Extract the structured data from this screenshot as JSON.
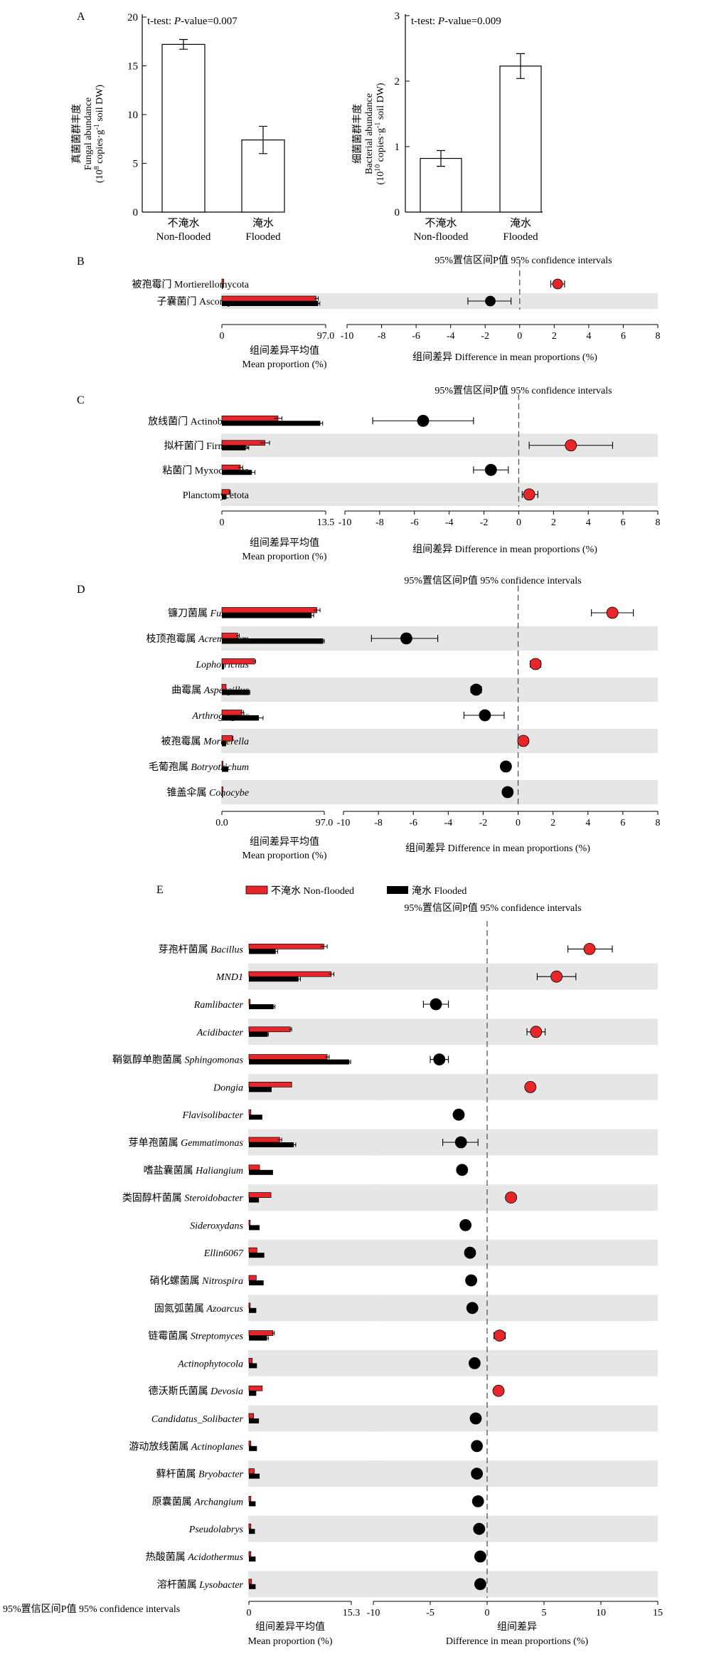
{
  "colors": {
    "non_flooded": "#e8262a",
    "flooded": "#000000",
    "stripe": "#e6e6e6"
  },
  "panelA": {
    "fungal": {
      "letter": "A",
      "test_prefix": "t-test: ",
      "test_p": "P",
      "test_suffix": "-value=0.007",
      "ylabel_zh": "真菌菌群丰度",
      "ylabel_en": "Fungal abundance",
      "ylabel_unit_1": "(10",
      "ylabel_unit_sup": "8",
      "ylabel_unit_2": " copies·g",
      "ylabel_unit_sup2": "-1",
      "ylabel_unit_3": " soil DW)",
      "yticks": [
        "0",
        "5",
        "10",
        "15",
        "20"
      ],
      "categories_zh": [
        "不淹水",
        "淹水"
      ],
      "categories_en": [
        "Non-flooded",
        "Flooded"
      ]
    },
    "bacterial": {
      "test_prefix": "t-test: ",
      "test_p": "P",
      "test_suffix": "-value=0.009",
      "ylabel_zh": "细菌菌群丰度",
      "ylabel_en": "Bacterial abundance",
      "ylabel_unit_1": "(10",
      "ylabel_unit_sup": "10",
      "ylabel_unit_2": " copies·g",
      "ylabel_unit_sup2": "-1",
      "ylabel_unit_3": " soil DW)",
      "yticks": [
        "0",
        "1",
        "2",
        "3"
      ],
      "categories_zh": [
        "不淹水",
        "淹水"
      ],
      "categories_en": [
        "Non-flooded",
        "Flooded"
      ]
    }
  },
  "labels": {
    "ci_header": "95%置信区间P值 95% confidence intervals",
    "mean_zh": "组间差异平均值",
    "mean_en": "Mean proportion (%)",
    "diff_line": "组间差异 Difference in mean proportions (%)",
    "diff_zh": "组间差异",
    "diff_en": "Difference in mean proportions (%)",
    "legend_non_flooded": "不淹水 Non-flooded",
    "legend_flooded": "淹水 Flooded",
    "footer_note": "95%置信区间P值 95% confidence intervals",
    "letter_B": "B",
    "letter_C": "C",
    "letter_D": "D",
    "letter_E": "E"
  },
  "chart_data": [
    {
      "panel": "A-fungal",
      "type": "bar",
      "title": "t-test: P-value=0.007",
      "ylabel": "真菌菌群丰度 Fungal abundance (10^8 copies·g^-1 soil DW)",
      "categories": [
        "不淹水 Non-flooded",
        "淹水 Flooded"
      ],
      "values": [
        17.2,
        7.4
      ],
      "errors": [
        0.5,
        1.4
      ],
      "ylim": [
        0,
        20
      ]
    },
    {
      "panel": "A-bacterial",
      "type": "bar",
      "title": "t-test: P-value=0.009",
      "ylabel": "细菌菌群丰度 Bacterial abundance (10^10 copies·g^-1 soil DW)",
      "categories": [
        "不淹水 Non-flooded",
        "淹水 Flooded"
      ],
      "values": [
        0.82,
        2.23
      ],
      "errors": [
        0.12,
        0.19
      ],
      "ylim": [
        0,
        3
      ]
    },
    {
      "panel": "B",
      "type": "bar",
      "bar_xticks": [
        "0",
        "97.0"
      ],
      "bar_max": 97,
      "diff_xticks": [
        "-10",
        "-8",
        "-6",
        "-4",
        "-2",
        "0",
        "2",
        "4",
        "6",
        "8"
      ],
      "diff_xlim": [
        -10,
        8
      ],
      "rows": [
        {
          "zh": "被孢霉门 ",
          "en": "Mortierellomycota",
          "italic": false,
          "nf": 1.8,
          "nf_err": 0,
          "fl": 0.4,
          "fl_err": 0,
          "diff": 2.2,
          "lo": 1.8,
          "hi": 2.6,
          "higher": "non_flooded"
        },
        {
          "zh": "子囊菌门 ",
          "en": "Ascomycota",
          "italic": false,
          "nf": 88,
          "nf_err": 2,
          "fl": 90,
          "fl_err": 1.5,
          "diff": -1.7,
          "lo": -3.0,
          "hi": -0.5,
          "higher": "flooded"
        }
      ]
    },
    {
      "panel": "C",
      "type": "bar",
      "bar_xticks": [
        "0",
        "13.5"
      ],
      "bar_max": 13.5,
      "diff_xticks": [
        "-10",
        "-8",
        "-6",
        "-4",
        "-2",
        "0",
        "2",
        "4",
        "6",
        "8"
      ],
      "diff_xlim": [
        -10,
        8
      ],
      "rows": [
        {
          "zh": "放线菌门 ",
          "en": "Actinobacteria",
          "italic": false,
          "nf": 7.3,
          "nf_err": 0.5,
          "fl": 12.8,
          "fl_err": 0.3,
          "diff": -5.5,
          "lo": -8.4,
          "hi": -2.6,
          "higher": "flooded"
        },
        {
          "zh": "拟杆菌门 ",
          "en": "Firmicutes",
          "italic": false,
          "nf": 5.6,
          "nf_err": 0.6,
          "fl": 3.1,
          "fl_err": 0.4,
          "diff": 3.0,
          "lo": 0.6,
          "hi": 5.4,
          "higher": "non_flooded"
        },
        {
          "zh": "粘菌门 ",
          "en": "Myxococcota",
          "italic": false,
          "nf": 2.4,
          "nf_err": 0.3,
          "fl": 3.9,
          "fl_err": 0.4,
          "diff": -1.6,
          "lo": -2.6,
          "hi": -0.6,
          "higher": "flooded"
        },
        {
          "zh": "",
          "en": "Planctomycetota",
          "italic": false,
          "nf": 1.0,
          "nf_err": 0.1,
          "fl": 0.5,
          "fl_err": 0.05,
          "diff": 0.6,
          "lo": 0.2,
          "hi": 1.1,
          "higher": "non_flooded"
        }
      ]
    },
    {
      "panel": "D",
      "type": "bar",
      "bar_xticks": [
        "0.0",
        "97.0"
      ],
      "bar_max": 97,
      "diff_xticks": [
        "-10",
        "-8",
        "-6",
        "-4",
        "-2",
        "0",
        "2",
        "4",
        "6",
        "8"
      ],
      "diff_xlim": [
        -10,
        8
      ],
      "rows": [
        {
          "zh": "镰刀菌属 ",
          "en": "Fusarium",
          "italic": true,
          "nf": 90,
          "nf_err": 3,
          "fl": 85,
          "fl_err": 2,
          "diff": 5.4,
          "lo": 4.2,
          "hi": 6.6,
          "higher": "non_flooded"
        },
        {
          "zh": "枝顶孢霉属 ",
          "en": "Acremonium",
          "italic": true,
          "nf": 15,
          "nf_err": 1.5,
          "fl": 96,
          "fl_err": 1,
          "diff": -6.4,
          "lo": -8.4,
          "hi": -4.6,
          "higher": "flooded"
        },
        {
          "zh": "",
          "en": "Lophotrichus",
          "italic": true,
          "nf": 31,
          "nf_err": 1,
          "fl": 2,
          "fl_err": 0,
          "diff": 1.0,
          "lo": 0.7,
          "hi": 1.3,
          "higher": "non_flooded"
        },
        {
          "zh": "曲霉属 ",
          "en": "Aspergillus",
          "italic": true,
          "nf": 4,
          "nf_err": 0,
          "fl": 26,
          "fl_err": 0.5,
          "diff": -2.4,
          "lo": -2.7,
          "hi": -2.1,
          "higher": "flooded"
        },
        {
          "zh": "",
          "en": "Arthrographis",
          "italic": true,
          "nf": 19,
          "nf_err": 1.5,
          "fl": 35,
          "fl_err": 4,
          "diff": -1.9,
          "lo": -3.1,
          "hi": -0.8,
          "higher": "flooded"
        },
        {
          "zh": "被孢霉属 ",
          "en": "Mortierella",
          "italic": true,
          "nf": 10,
          "nf_err": 0.5,
          "fl": 4,
          "fl_err": 0,
          "diff": 0.3,
          "lo": 0.1,
          "hi": 0.5,
          "higher": "non_flooded"
        },
        {
          "zh": "毛葡孢属 ",
          "en": "Botryotrichum",
          "italic": true,
          "nf": 1,
          "nf_err": 0,
          "fl": 6,
          "fl_err": 0,
          "diff": -0.7,
          "lo": -0.9,
          "hi": -0.5,
          "higher": "flooded"
        },
        {
          "zh": "锥盖伞属 ",
          "en": "Conocybe",
          "italic": true,
          "nf": 0.5,
          "nf_err": 0,
          "fl": 1,
          "fl_err": 0,
          "diff": -0.6,
          "lo": -0.8,
          "hi": -0.4,
          "higher": "flooded"
        }
      ]
    },
    {
      "panel": "E",
      "type": "bar",
      "bar_xticks": [
        "0",
        "15.3"
      ],
      "bar_max": 15.3,
      "diff_xticks": [
        "-10",
        "-5",
        "0",
        "5",
        "10",
        "15"
      ],
      "diff_xlim": [
        -10,
        15
      ],
      "legend": [
        "不淹水 Non-flooded",
        "淹水 Flooded"
      ],
      "rows": [
        {
          "zh": "芽孢杆菌属 ",
          "en": "Bacillus",
          "italic": true,
          "nf": 11.2,
          "nf_err": 0.5,
          "fl": 4.0,
          "fl_err": 0.3,
          "diff": 9.0,
          "lo": 7.1,
          "hi": 11.0,
          "higher": "non_flooded"
        },
        {
          "zh": "",
          "en": "MND1",
          "italic": true,
          "nf": 12.3,
          "nf_err": 0.4,
          "fl": 7.4,
          "fl_err": 0.3,
          "diff": 6.1,
          "lo": 4.4,
          "hi": 7.8,
          "higher": "non_flooded"
        },
        {
          "zh": "",
          "en": "Ramlibacter",
          "italic": true,
          "nf": 0.2,
          "nf_err": 0,
          "fl": 3.7,
          "fl_err": 0.2,
          "diff": -4.5,
          "lo": -5.6,
          "hi": -3.4,
          "higher": "flooded"
        },
        {
          "zh": "",
          "en": "Acidibacter",
          "italic": true,
          "nf": 6.2,
          "nf_err": 0.2,
          "fl": 2.8,
          "fl_err": 0.1,
          "diff": 4.3,
          "lo": 3.5,
          "hi": 5.1,
          "higher": "non_flooded"
        },
        {
          "zh": "鞘氨醇单胞菌属 ",
          "en": "Sphingomonas",
          "italic": true,
          "nf": 11.7,
          "nf_err": 0.3,
          "fl": 15.0,
          "fl_err": 0.2,
          "diff": -4.2,
          "lo": -5.0,
          "hi": -3.4,
          "higher": "flooded"
        },
        {
          "zh": "",
          "en": "Dongia",
          "italic": true,
          "nf": 6.4,
          "nf_err": 0,
          "fl": 3.4,
          "fl_err": 0,
          "diff": 3.8,
          "lo": 3.4,
          "hi": 4.2,
          "higher": "non_flooded"
        },
        {
          "zh": "",
          "en": "Flavisolibacter",
          "italic": true,
          "nf": 0.3,
          "nf_err": 0,
          "fl": 2.0,
          "fl_err": 0,
          "diff": -2.5,
          "lo": -2.8,
          "hi": -2.2,
          "higher": "flooded"
        },
        {
          "zh": "芽单孢菌属 ",
          "en": "Gemmatimonas",
          "italic": true,
          "nf": 4.6,
          "nf_err": 0.3,
          "fl": 6.7,
          "fl_err": 0.3,
          "diff": -2.3,
          "lo": -3.9,
          "hi": -0.8,
          "higher": "flooded"
        },
        {
          "zh": "嗜盐囊菌属 ",
          "en": "Haliangium",
          "italic": true,
          "nf": 1.6,
          "nf_err": 0,
          "fl": 3.6,
          "fl_err": 0,
          "diff": -2.2,
          "lo": -2.5,
          "hi": -1.9,
          "higher": "flooded"
        },
        {
          "zh": "类固醇杆菌属 ",
          "en": "Steroidobacter",
          "italic": true,
          "nf": 3.3,
          "nf_err": 0,
          "fl": 1.5,
          "fl_err": 0,
          "diff": 2.1,
          "lo": 1.8,
          "hi": 2.4,
          "higher": "non_flooded"
        },
        {
          "zh": "",
          "en": "Sideroxydans",
          "italic": true,
          "nf": 0.2,
          "nf_err": 0,
          "fl": 1.6,
          "fl_err": 0,
          "diff": -1.9,
          "lo": -2.2,
          "hi": -1.6,
          "higher": "flooded"
        },
        {
          "zh": "",
          "en": "Ellin6067",
          "italic": true,
          "nf": 1.2,
          "nf_err": 0,
          "fl": 2.3,
          "fl_err": 0,
          "diff": -1.5,
          "lo": -1.8,
          "hi": -1.2,
          "higher": "flooded"
        },
        {
          "zh": "硝化螺菌属 ",
          "en": "Nitrospira",
          "italic": true,
          "nf": 1.1,
          "nf_err": 0,
          "fl": 2.2,
          "fl_err": 0,
          "diff": -1.4,
          "lo": -1.7,
          "hi": -1.1,
          "higher": "flooded"
        },
        {
          "zh": "固氮弧菌属 ",
          "en": "Azoarcus",
          "italic": true,
          "nf": 0.2,
          "nf_err": 0,
          "fl": 1.1,
          "fl_err": 0,
          "diff": -1.3,
          "lo": -1.6,
          "hi": -1.0,
          "higher": "flooded"
        },
        {
          "zh": "链霉菌属 ",
          "en": "Streptomyces",
          "italic": true,
          "nf": 3.6,
          "nf_err": 0.2,
          "fl": 2.7,
          "fl_err": 0.2,
          "diff": 1.1,
          "lo": 0.6,
          "hi": 1.6,
          "higher": "non_flooded"
        },
        {
          "zh": "",
          "en": "Actinophytocola",
          "italic": true,
          "nf": 0.5,
          "nf_err": 0,
          "fl": 1.2,
          "fl_err": 0,
          "diff": -1.1,
          "lo": -1.4,
          "hi": -0.8,
          "higher": "flooded"
        },
        {
          "zh": "德沃斯氏菌属 ",
          "en": "Devosia",
          "italic": true,
          "nf": 2.0,
          "nf_err": 0,
          "fl": 1.1,
          "fl_err": 0,
          "diff": 1.0,
          "lo": 0.7,
          "hi": 1.3,
          "higher": "non_flooded"
        },
        {
          "zh": "",
          "en": "Candidatus_Solibacter",
          "italic": true,
          "nf": 0.7,
          "nf_err": 0,
          "fl": 1.5,
          "fl_err": 0,
          "diff": -1.0,
          "lo": -1.3,
          "hi": -0.7,
          "higher": "flooded"
        },
        {
          "zh": "游动放线菌属 ",
          "en": "Actinoplanes",
          "italic": true,
          "nf": 0.3,
          "nf_err": 0,
          "fl": 1.2,
          "fl_err": 0,
          "diff": -0.9,
          "lo": -1.2,
          "hi": -0.6,
          "higher": "flooded"
        },
        {
          "zh": "藓杆菌属 ",
          "en": "Bryobacter",
          "italic": true,
          "nf": 0.8,
          "nf_err": 0,
          "fl": 1.6,
          "fl_err": 0,
          "diff": -0.9,
          "lo": -1.2,
          "hi": -0.6,
          "higher": "flooded"
        },
        {
          "zh": "原囊菌属 ",
          "en": "Archangium",
          "italic": true,
          "nf": 0.3,
          "nf_err": 0,
          "fl": 1.0,
          "fl_err": 0,
          "diff": -0.8,
          "lo": -1.1,
          "hi": -0.5,
          "higher": "flooded"
        },
        {
          "zh": "",
          "en": "Pseudolabrys",
          "italic": true,
          "nf": 0.3,
          "nf_err": 0,
          "fl": 0.9,
          "fl_err": 0,
          "diff": -0.7,
          "lo": -1.0,
          "hi": -0.4,
          "higher": "flooded"
        },
        {
          "zh": "热酸菌属 ",
          "en": "Acidothermus",
          "italic": true,
          "nf": 0.3,
          "nf_err": 0,
          "fl": 1.0,
          "fl_err": 0,
          "diff": -0.6,
          "lo": -0.9,
          "hi": -0.3,
          "higher": "flooded"
        },
        {
          "zh": "溶杆菌属 ",
          "en": "Lysobacter",
          "italic": true,
          "nf": 0.4,
          "nf_err": 0,
          "fl": 1.0,
          "fl_err": 0,
          "diff": -0.6,
          "lo": -0.9,
          "hi": -0.3,
          "higher": "flooded"
        }
      ]
    }
  ]
}
